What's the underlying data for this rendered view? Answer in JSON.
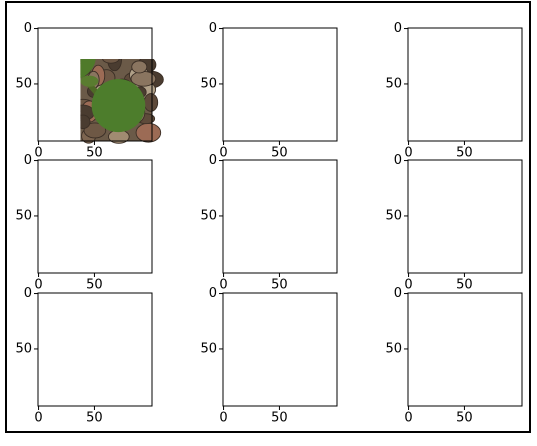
{
  "chart_data": [
    {
      "type": "image",
      "xlim": [
        -0.5,
        101.5
      ],
      "ylim": [
        101.5,
        -0.5
      ],
      "xticks": [
        0,
        50
      ],
      "yticks": [
        0,
        50
      ]
    },
    {
      "type": "image",
      "xlim": [
        -0.5,
        101.5
      ],
      "ylim": [
        101.5,
        -0.5
      ],
      "xticks": [
        0,
        50
      ],
      "yticks": [
        0,
        50
      ]
    },
    {
      "type": "image",
      "xlim": [
        -0.5,
        101.5
      ],
      "ylim": [
        101.5,
        -0.5
      ],
      "xticks": [
        0,
        50
      ],
      "yticks": [
        0,
        50
      ]
    },
    {
      "type": "image",
      "xlim": [
        -0.5,
        101.5
      ],
      "ylim": [
        101.5,
        -0.5
      ],
      "xticks": [
        0,
        50
      ],
      "yticks": [
        0,
        50
      ]
    },
    {
      "type": "image",
      "xlim": [
        -0.5,
        101.5
      ],
      "ylim": [
        101.5,
        -0.5
      ],
      "xticks": [
        0,
        50
      ],
      "yticks": [
        0,
        50
      ]
    },
    {
      "type": "image",
      "xlim": [
        -0.5,
        101.5
      ],
      "ylim": [
        101.5,
        -0.5
      ],
      "xticks": [
        0,
        50
      ],
      "yticks": [
        0,
        50
      ]
    },
    {
      "type": "image",
      "xlim": [
        -0.5,
        101.5
      ],
      "ylim": [
        101.5,
        -0.5
      ],
      "xticks": [
        0,
        50
      ],
      "yticks": [
        0,
        50
      ]
    },
    {
      "type": "image",
      "xlim": [
        -0.5,
        101.5
      ],
      "ylim": [
        101.5,
        -0.5
      ],
      "xticks": [
        0,
        50
      ],
      "yticks": [
        0,
        50
      ]
    },
    {
      "type": "image",
      "xlim": [
        -0.5,
        101.5
      ],
      "ylim": [
        101.5,
        -0.5
      ],
      "xticks": [
        0,
        50
      ],
      "yticks": [
        0,
        50
      ]
    }
  ]
}
